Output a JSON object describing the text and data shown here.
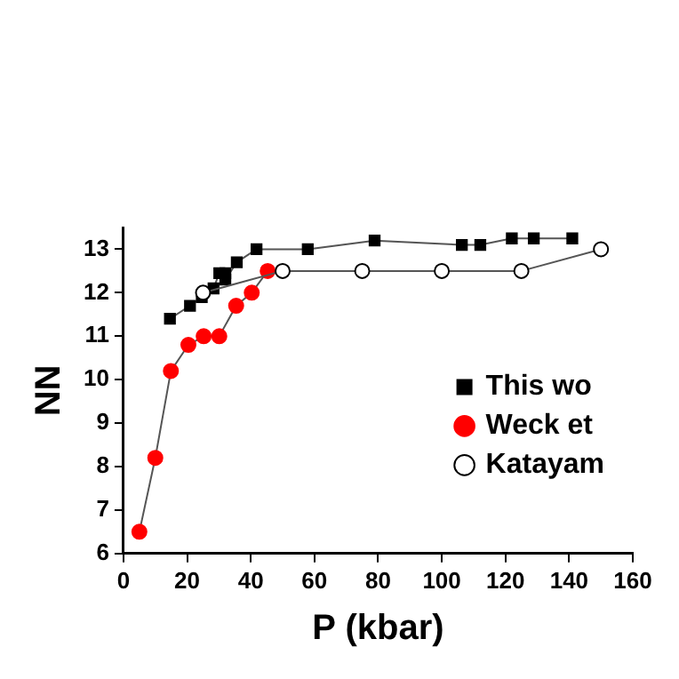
{
  "chart_data": {
    "type": "line",
    "xlabel": "P (kbar)",
    "ylabel": "NN",
    "xlim": [
      0,
      160
    ],
    "xticks": [
      0,
      20,
      40,
      60,
      80,
      100,
      120,
      140,
      160
    ],
    "ylim": [
      6,
      13.5
    ],
    "yticks": [
      6,
      7,
      8,
      9,
      10,
      11,
      12,
      13
    ],
    "grid": false,
    "legend": "right",
    "line_style": "solid",
    "series": [
      {
        "name": "This wo",
        "color": "#000000",
        "marker": "square",
        "x": [
          14.6,
          20.9,
          24.6,
          28.3,
          30.1,
          32,
          32,
          35.6,
          41.8,
          57.9,
          78.9,
          106.3,
          112.1,
          122,
          128.9,
          141
        ],
        "values": [
          11.4,
          11.7,
          11.9,
          12.1,
          12.45,
          12.45,
          12.3,
          12.7,
          13,
          13,
          13.2,
          13.1,
          13.1,
          13.25,
          13.25,
          13.25
        ]
      },
      {
        "name": "Weck et",
        "color": "#ff0000",
        "marker": "circle",
        "x": [
          5,
          10,
          14.9,
          20.4,
          25.2,
          30.1,
          35.4,
          40.3,
          45.3
        ],
        "values": [
          6.5,
          8.2,
          10.2,
          10.8,
          11,
          11,
          11.7,
          12,
          12.5
        ]
      },
      {
        "name": "Katayam",
        "color": "#ffffff",
        "marker": "circle",
        "x": [
          25,
          50,
          75,
          100,
          125,
          150
        ],
        "values": [
          12,
          12.5,
          12.5,
          12.5,
          12.5,
          13
        ]
      }
    ]
  }
}
